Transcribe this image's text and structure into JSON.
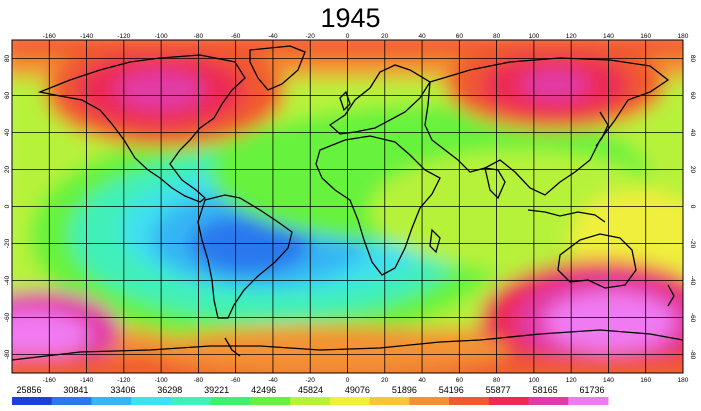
{
  "title": "1945",
  "longitude_ticks": [
    "-160",
    "-140",
    "-120",
    "-100",
    "-80",
    "-60",
    "-40",
    "-20",
    "0",
    "20",
    "40",
    "60",
    "80",
    "100",
    "120",
    "140",
    "160",
    "180"
  ],
  "latitude_ticks": [
    "80",
    "60",
    "40",
    "20",
    "0",
    "-20",
    "-40",
    "-60",
    "-80"
  ],
  "legend": {
    "labels": [
      "25856",
      "30841",
      "33406",
      "36298",
      "39221",
      "42496",
      "45824",
      "49076",
      "51896",
      "54196",
      "55877",
      "58165",
      "61736"
    ],
    "colors": [
      "#1f3fd6",
      "#2a78ee",
      "#34b5f4",
      "#3fe0ef",
      "#41f0b8",
      "#3fef6d",
      "#66f23c",
      "#b7f23a",
      "#f0ef3c",
      "#f7c43a",
      "#f39234",
      "#f15a2f",
      "#ec2a54",
      "#e23aa6",
      "#f07af2"
    ]
  },
  "map_layer": {
    "color_scale": [
      "#1f3fd6",
      "#2a78ee",
      "#34b5f4",
      "#3fe0ef",
      "#41f0b8",
      "#3fef6d",
      "#66f23c",
      "#b7f23a",
      "#f0ef3c",
      "#f7c43a",
      "#f39234",
      "#f15a2f",
      "#ec2a54",
      "#e23aa6",
      "#f07af2"
    ],
    "coastline_color": "#000000",
    "grid_color": "#000000"
  }
}
